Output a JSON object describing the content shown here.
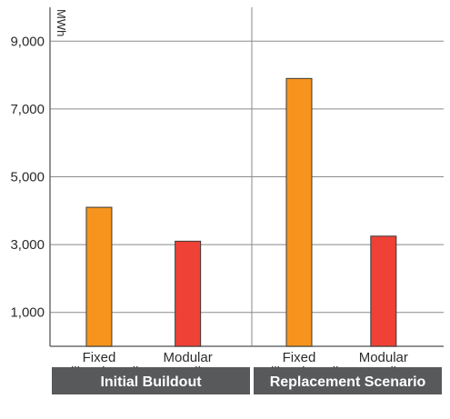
{
  "chart_data": {
    "type": "bar",
    "unit": "MWh",
    "ylim": [
      0,
      10000
    ],
    "yticks": [
      "1,000",
      "3,000",
      "5,000",
      "7,000",
      "9,000"
    ],
    "ytick_values": [
      1000,
      3000,
      5000,
      7000,
      9000
    ],
    "groups": [
      {
        "name": "Initial Buildout",
        "bars": [
          {
            "label_lines": [
              "Fixed",
              "Millwork Wall"
            ],
            "value": 4100,
            "color": "#f7941d"
          },
          {
            "label_lines": [
              "Modular",
              "Wall"
            ],
            "value": 3100,
            "color": "#ef4136"
          }
        ]
      },
      {
        "name": "Replacement Scenario",
        "bars": [
          {
            "label_lines": [
              "Fixed",
              "Millwork Wall"
            ],
            "value": 7900,
            "color": "#f7941d"
          },
          {
            "label_lines": [
              "Modular",
              "Wall"
            ],
            "value": 3250,
            "color": "#ef4136"
          }
        ]
      }
    ],
    "grid": true,
    "colors": {
      "gridline": "#8a8a8a",
      "axis": "#6d6e71",
      "group_band": "#58595b",
      "bar_stroke": "#3a3a3a"
    }
  }
}
